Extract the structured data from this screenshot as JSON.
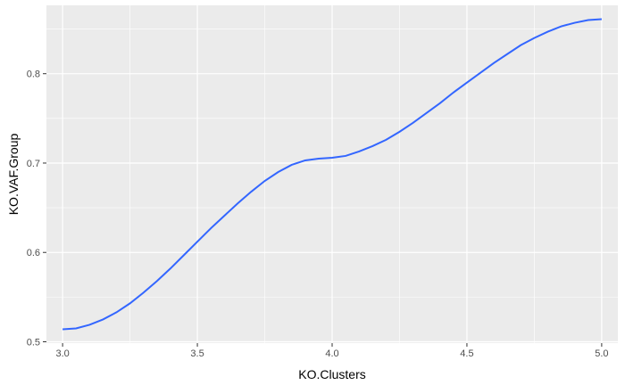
{
  "chart_data": {
    "type": "line",
    "title": "",
    "xlabel": "KO.Clusters",
    "ylabel": "KO.VAF.Group",
    "xlim": [
      2.94,
      5.06
    ],
    "ylim": [
      0.4985,
      0.8765
    ],
    "x_ticks": [
      3.0,
      3.5,
      4.0,
      4.5,
      5.0
    ],
    "x_tick_labels": [
      "3.0",
      "3.5",
      "4.0",
      "4.5",
      "5.0"
    ],
    "y_ticks": [
      0.5,
      0.6,
      0.7,
      0.8
    ],
    "y_tick_labels": [
      "0.5",
      "0.6",
      "0.7",
      "0.8"
    ],
    "grid": true,
    "colors": {
      "panel": "#ebebeb",
      "grid": "#ffffff",
      "line": "#3366ff"
    },
    "series": [
      {
        "x": [
          3.0,
          3.05,
          3.1,
          3.15,
          3.2,
          3.25,
          3.3,
          3.35,
          3.4,
          3.45,
          3.5,
          3.55,
          3.6,
          3.65,
          3.7,
          3.75,
          3.8,
          3.85,
          3.9,
          3.95,
          4.0,
          4.05,
          4.1,
          4.15,
          4.2,
          4.25,
          4.3,
          4.35,
          4.4,
          4.45,
          4.5,
          4.55,
          4.6,
          4.65,
          4.7,
          4.75,
          4.8,
          4.85,
          4.9,
          4.95,
          5.0
        ],
        "y": [
          0.514,
          0.515,
          0.519,
          0.525,
          0.533,
          0.543,
          0.555,
          0.568,
          0.582,
          0.597,
          0.612,
          0.627,
          0.641,
          0.655,
          0.668,
          0.68,
          0.69,
          0.698,
          0.703,
          0.705,
          0.706,
          0.708,
          0.713,
          0.719,
          0.726,
          0.735,
          0.745,
          0.756,
          0.767,
          0.779,
          0.79,
          0.801,
          0.812,
          0.822,
          0.832,
          0.84,
          0.847,
          0.853,
          0.857,
          0.86,
          0.861
        ]
      }
    ]
  }
}
